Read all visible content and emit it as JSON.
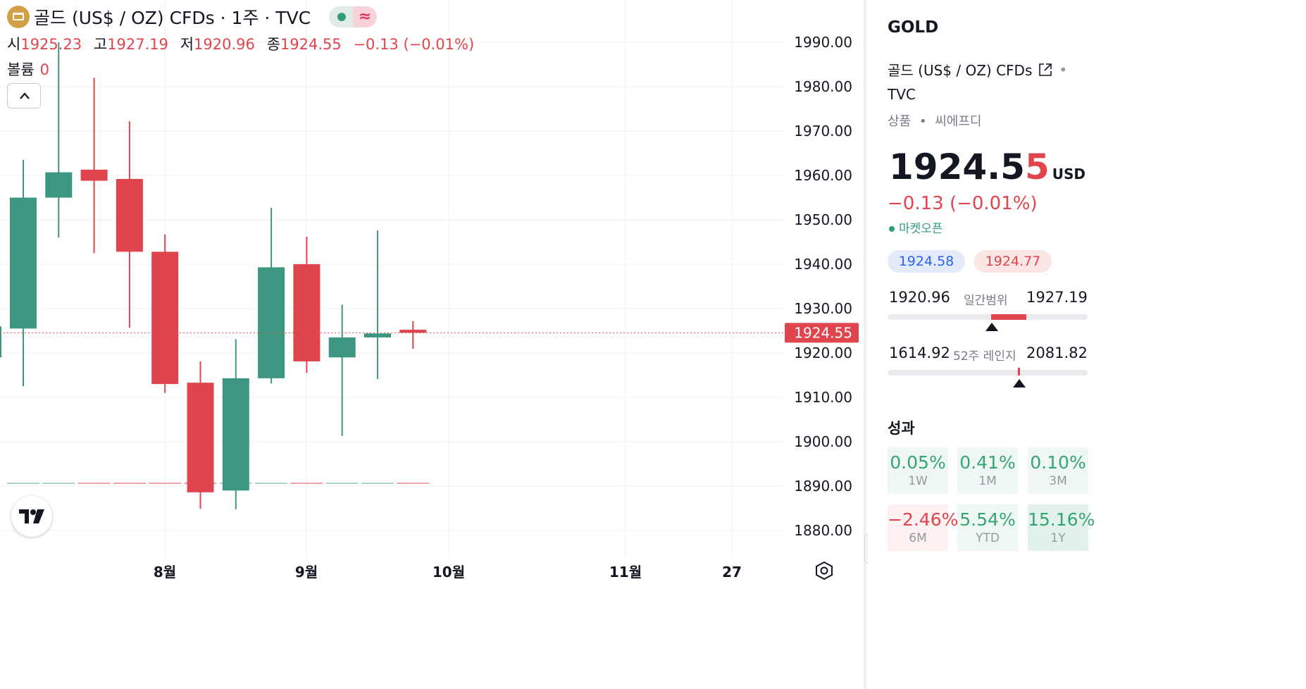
{
  "header": {
    "title": "골드 (US$ / OZ) CFDs · 1주 · TVC",
    "ohlc": [
      {
        "key": "시",
        "value": "1925.23"
      },
      {
        "key": "고",
        "value": "1927.19"
      },
      {
        "key": "저",
        "value": "1920.96"
      },
      {
        "key": "종",
        "value": "1924.55"
      }
    ],
    "change": "−0.13 (−0.01%)",
    "volume_label": "볼륨",
    "volume_value": "0",
    "pill_icon": "wave-icon"
  },
  "chart_data": {
    "type": "candlestick",
    "y_ticks": [
      1990,
      1980,
      1970,
      1960,
      1950,
      1940,
      1930,
      1920,
      1910,
      1900,
      1890,
      1880
    ],
    "y_tick_labels": [
      "1990.00",
      "1980.00",
      "1970.00",
      "1960.00",
      "1950.00",
      "1940.00",
      "1930.00",
      "1920.00",
      "1910.00",
      "1900.00",
      "1890.00",
      "1880.00"
    ],
    "ylim": [
      1875,
      1997
    ],
    "x_labels": [
      "8월",
      "9월",
      "10월",
      "11월",
      "27"
    ],
    "last_price": 1924.55,
    "last_price_label": "1924.55",
    "colors": {
      "up": "#3d9680",
      "down": "#e0454e",
      "grid": "#f0f2f5"
    },
    "candles": [
      {
        "open": 1925.5,
        "high": 1963.5,
        "low": 1912.5,
        "close": 1955.0
      },
      {
        "open": 1955.0,
        "high": 1990.0,
        "low": 1946.0,
        "close": 1960.7
      },
      {
        "open": 1961.3,
        "high": 1982.0,
        "low": 1942.5,
        "close": 1958.8
      },
      {
        "open": 1959.2,
        "high": 1972.2,
        "low": 1925.7,
        "close": 1942.8
      },
      {
        "open": 1942.8,
        "high": 1946.7,
        "low": 1911.0,
        "close": 1913.0
      },
      {
        "open": 1913.3,
        "high": 1918.1,
        "low": 1884.9,
        "close": 1888.6
      },
      {
        "open": 1889.0,
        "high": 1923.1,
        "low": 1884.8,
        "close": 1914.3
      },
      {
        "open": 1914.3,
        "high": 1952.7,
        "low": 1913.1,
        "close": 1939.3
      },
      {
        "open": 1940.0,
        "high": 1946.2,
        "low": 1915.5,
        "close": 1918.1
      },
      {
        "open": 1919.0,
        "high": 1930.9,
        "low": 1901.3,
        "close": 1923.5
      },
      {
        "open": 1923.5,
        "high": 1947.6,
        "low": 1914.1,
        "close": 1924.4
      },
      {
        "open": 1925.23,
        "high": 1927.19,
        "low": 1920.96,
        "close": 1924.55
      }
    ]
  },
  "panel": {
    "symbol": "GOLD",
    "name": "골드 (US$ / OZ) CFDs",
    "exchange": "TVC",
    "category": "상품",
    "category2": "씨에프디",
    "price_main": "1924.5",
    "price_last_digit": "5",
    "currency": "USD",
    "change": "−0.13 (−0.01%)",
    "market_status": "마켓오픈",
    "bid": "1924.58",
    "ask": "1924.77",
    "day_low": "1920.96",
    "day_range_label": "일간범위",
    "day_high": "1927.19",
    "day_position": 0.58,
    "wk52_low": "1614.92",
    "wk52_label": "52주 레인지",
    "wk52_high": "2081.82",
    "wk52_position": 0.66,
    "performance_title": "성과",
    "performance": [
      {
        "value": "0.05%",
        "period": "1W",
        "tone": "up"
      },
      {
        "value": "0.41%",
        "period": "1M",
        "tone": "up"
      },
      {
        "value": "0.10%",
        "period": "3M",
        "tone": "up"
      },
      {
        "value": "−2.46%",
        "period": "6M",
        "tone": "down"
      },
      {
        "value": "5.54%",
        "period": "YTD",
        "tone": "up"
      },
      {
        "value": "15.16%",
        "period": "1Y",
        "tone": "up2"
      }
    ]
  }
}
